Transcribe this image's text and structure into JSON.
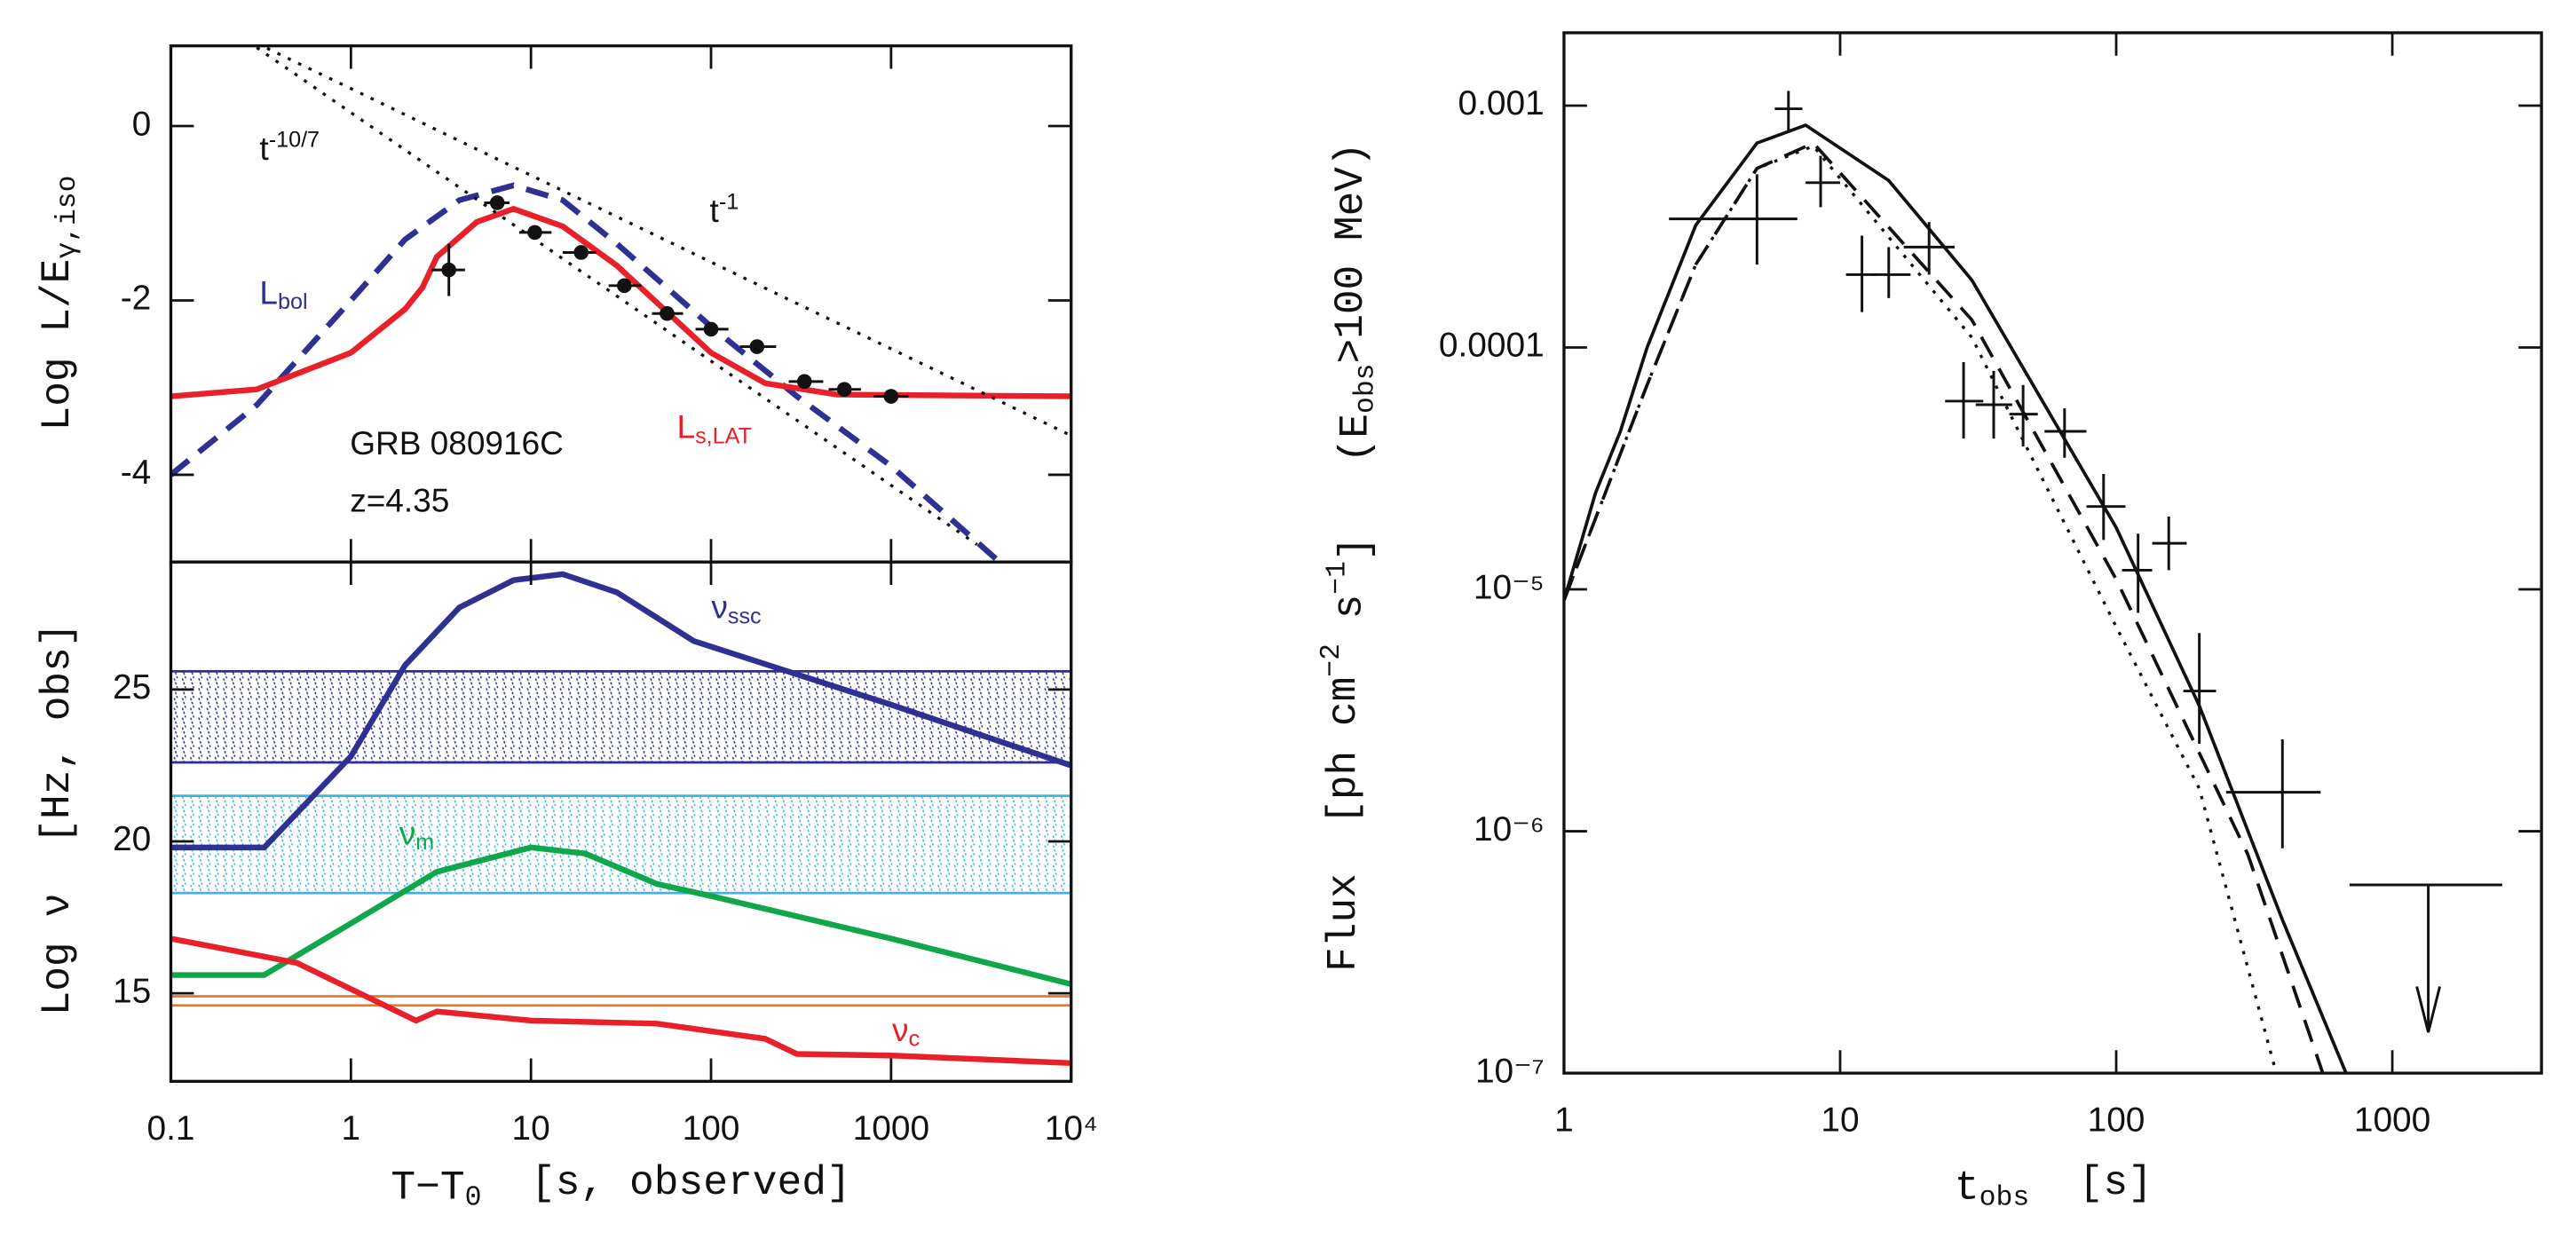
{
  "chart_data": [
    {
      "type": "line",
      "xscale": "log",
      "xlim": [
        0.1,
        10000
      ],
      "ylim": [
        -5,
        0.92
      ],
      "yticks": [
        -4,
        -2,
        0
      ],
      "ylabel": [
        [
          "Log L/E",
          ""
        ],
        [
          "γ,iso",
          "sub"
        ]
      ],
      "series": [
        {
          "label": [
            [
              "L",
              ""
            ],
            [
              "bol",
              "sub"
            ]
          ],
          "color": "#2e3192",
          "dash": "dashed",
          "x": [
            0.1,
            0.3,
            1,
            2,
            4,
            8,
            15,
            30,
            100,
            300,
            1000,
            4000
          ],
          "values": [
            -4,
            -3.2,
            -2,
            -1.3,
            -0.85,
            -0.68,
            -0.85,
            -1.35,
            -2.3,
            -3.1,
            -3.9,
            -5
          ]
        },
        {
          "label": [
            [
              "L",
              ""
            ],
            [
              "s,LAT",
              "sub"
            ]
          ],
          "color": "#e8202a",
          "dash": "solid",
          "x": [
            0.1,
            0.3,
            1,
            2,
            2.5,
            3,
            5,
            8,
            15,
            30,
            100,
            200,
            500,
            10000
          ],
          "values": [
            -3.1,
            -3.02,
            -2.6,
            -2.1,
            -1.85,
            -1.5,
            -1.1,
            -0.95,
            -1.15,
            -1.6,
            -2.6,
            -2.95,
            -3.08,
            -3.1
          ]
        },
        {
          "label": [
            [
              "t",
              ""
            ],
            [
              "-10/7",
              "sup"
            ]
          ],
          "color": "#111111",
          "dash": "dotted",
          "x": [
            0.3,
            3000
          ],
          "values": [
            0.9,
            -4.8
          ]
        },
        {
          "label": [
            [
              "t",
              ""
            ],
            [
              "-1",
              "sup"
            ]
          ],
          "color": "#111111",
          "dash": "dotted",
          "x": [
            0.3,
            10000
          ],
          "values": [
            0.95,
            -3.55
          ]
        }
      ],
      "points": {
        "marker": "circle",
        "x": [
          3.5,
          6.5,
          10.5,
          19,
          33,
          57,
          100,
          180,
          330,
          550,
          1000
        ],
        "xlow": [
          2.8,
          5.5,
          8.6,
          15,
          27,
          47,
          82,
          145,
          270,
          450,
          800
        ],
        "xhigh": [
          4.3,
          7.6,
          13,
          23,
          41,
          70,
          125,
          230,
          420,
          680,
          1250
        ],
        "values": [
          -1.65,
          -0.88,
          -1.22,
          -1.45,
          -1.83,
          -2.15,
          -2.33,
          -2.53,
          -2.93,
          -3.02,
          -3.1
        ],
        "low": [
          -1.95,
          -0.93,
          -1.27,
          -1.52,
          -1.9,
          -2.22,
          -2.4,
          -2.6,
          -3,
          -3.07,
          -3.15
        ],
        "high": [
          -1.35,
          -0.83,
          -1.17,
          -1.38,
          -1.76,
          -2.08,
          -2.26,
          -2.46,
          -2.86,
          -2.97,
          -3.05
        ]
      },
      "annotations": [
        [
          [
            "GRB 080916C",
            ""
          ]
        ],
        [
          [
            "z=4.35",
            ""
          ]
        ]
      ]
    },
    {
      "type": "line",
      "xscale": "log",
      "xlim": [
        0.1,
        10000
      ],
      "ylim": [
        12.1,
        29.2
      ],
      "xticks": [
        0.1,
        1,
        10,
        100,
        1000,
        {
          "value": 10000,
          "label": "10⁴"
        }
      ],
      "yticks": [
        15,
        20,
        25
      ],
      "xlabel": [
        [
          "T−T",
          ""
        ],
        [
          "0",
          "sub"
        ],
        [
          "  [s, observed]",
          ""
        ]
      ],
      "ylabel": [
        [
          "Log ν  [Hz, obs]",
          ""
        ]
      ],
      "bands": [
        {
          "range": [
            22.6,
            25.6
          ],
          "color": "#2e3192",
          "hatch": true
        },
        {
          "range": [
            18.3,
            21.5
          ],
          "color": "#3cb4e6",
          "hatch": true
        },
        {
          "range": [
            14.6,
            14.9
          ],
          "color": "#e37b2b",
          "hatch": false
        }
      ],
      "series": [
        {
          "label": [
            [
              "ν",
              ""
            ],
            [
              "ssc",
              "sub"
            ]
          ],
          "color": "#2e3192",
          "dash": "solid",
          "x": [
            0.1,
            0.33,
            1,
            2,
            4,
            8,
            15,
            30,
            80,
            300,
            1000,
            10000
          ],
          "values": [
            19.8,
            19.8,
            22.8,
            25.8,
            27.7,
            28.6,
            28.8,
            28.2,
            26.6,
            25.5,
            24.5,
            22.5
          ]
        },
        {
          "label": [
            [
              "ν",
              ""
            ],
            [
              "m",
              "sub"
            ]
          ],
          "color": "#10a64a",
          "dash": "solid",
          "x": [
            0.1,
            0.33,
            1,
            3,
            10,
            20,
            50,
            100,
            1000,
            10000
          ],
          "values": [
            15.6,
            15.6,
            17.3,
            19,
            19.8,
            19.6,
            18.6,
            18.2,
            16.8,
            15.3
          ]
        },
        {
          "label": [
            [
              "ν",
              ""
            ],
            [
              "c",
              "sub"
            ]
          ],
          "color": "#e8202a",
          "dash": "solid",
          "x": [
            0.1,
            0.5,
            2.3,
            3,
            10,
            50,
            200,
            300,
            1000,
            10000
          ],
          "values": [
            16.8,
            16,
            14.1,
            14.4,
            14.1,
            14,
            13.5,
            13,
            12.95,
            12.7
          ]
        }
      ]
    },
    {
      "type": "line",
      "xscale": "log",
      "yscale": "log",
      "xlim": [
        1,
        3470
      ],
      "ylim": [
        1e-07,
        0.002
      ],
      "xticks": [
        1,
        10,
        100,
        1000
      ],
      "yticks": [
        {
          "value": 1e-07,
          "label": "10⁻⁷"
        },
        {
          "value": 1e-06,
          "label": "10⁻⁶"
        },
        {
          "value": 1e-05,
          "label": "10⁻⁵"
        },
        0.0001,
        0.001
      ],
      "xlabel": [
        [
          "t",
          ""
        ],
        [
          "obs",
          "sub"
        ],
        [
          "  [s]",
          ""
        ]
      ],
      "ylabel": [
        [
          "Flux  [ph cm",
          ""
        ],
        [
          "−2",
          "sup"
        ],
        [
          " s",
          ""
        ],
        [
          "−1",
          "sup"
        ],
        [
          "]   (E",
          ""
        ],
        [
          "obs",
          "sub"
        ],
        [
          ">100 MeV)",
          ""
        ]
      ],
      "series": [
        {
          "color": "#111111",
          "dash": "solid",
          "x": [
            1,
            1.3,
            1.6,
            2,
            3,
            5,
            7.5,
            15,
            30,
            100,
            200,
            400,
            680
          ],
          "values": [
            9e-06,
            2.5e-05,
            4.5e-05,
            0.0001,
            0.00032,
            0.0007,
            0.00083,
            0.00049,
            0.00019,
            1.8e-05,
            3.3e-06,
            4.3e-07,
            1e-07
          ]
        },
        {
          "color": "#111111",
          "dash": "dashed",
          "x": [
            1,
            1.5,
            2,
            3,
            5,
            8,
            30,
            100,
            300,
            560
          ],
          "values": [
            9e-06,
            3e-05,
            7e-05,
            0.00022,
            0.00055,
            0.0007,
            0.00013,
            1.1e-05,
            8e-07,
            1e-07
          ]
        },
        {
          "color": "#111111",
          "dash": "dotted",
          "x": [
            1,
            1.5,
            2,
            3,
            5,
            8,
            30,
            100,
            200,
            380
          ],
          "values": [
            9e-06,
            3e-05,
            7e-05,
            0.00022,
            0.00055,
            0.00068,
            0.00011,
            7e-06,
            1.5e-06,
            1e-07
          ]
        }
      ],
      "points": {
        "marker": "none",
        "x": [
          5,
          6.5,
          8.5,
          12,
          15,
          21,
          28,
          36,
          46,
          65,
          90,
          120,
          155,
          200,
          400
        ],
        "xlow": [
          2.4,
          5.8,
          7.5,
          10.5,
          13,
          17,
          24,
          31,
          41,
          55,
          78,
          105,
          135,
          175,
          250
        ],
        "xhigh": [
          7,
          7.3,
          10,
          13.5,
          18,
          26,
          33,
          42,
          52,
          78,
          108,
          135,
          180,
          230,
          550
        ],
        "values": [
          0.00034,
          0.00097,
          0.00048,
          0.0002,
          0.0002,
          0.00026,
          6e-05,
          5.8e-05,
          5.3e-05,
          4.5e-05,
          2.2e-05,
          1.2e-05,
          1.55e-05,
          3.8e-06,
          1.45e-06
        ],
        "low": [
          0.00022,
          0.00078,
          0.00038,
          0.00014,
          0.00016,
          0.0002,
          4.2e-05,
          4.2e-05,
          3.9e-05,
          3.5e-05,
          1.6e-05,
          8e-06,
          1.2e-05,
          2.3e-06,
          8.5e-07
        ],
        "high": [
          0.00052,
          0.00115,
          0.00062,
          0.00029,
          0.00026,
          0.00033,
          8.7e-05,
          8e-05,
          7e-05,
          5.6e-05,
          3e-05,
          1.7e-05,
          2e-05,
          6.6e-06,
          2.4e-06
        ]
      },
      "upper_limit": {
        "x": 1350,
        "xlow": 700,
        "xhigh": 2500,
        "value": 6e-07
      }
    }
  ]
}
